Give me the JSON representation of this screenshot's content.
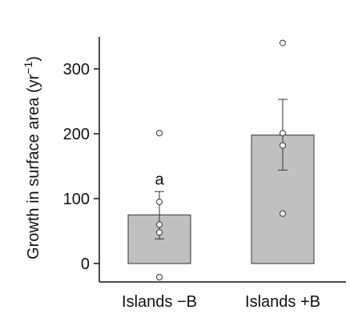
{
  "chart_data": {
    "type": "bar",
    "categories": [
      "Islands −B",
      "Islands +B"
    ],
    "values": [
      75,
      198
    ],
    "error": [
      {
        "lower": 38,
        "upper": 111
      },
      {
        "lower": 144,
        "upper": 253
      }
    ],
    "points": [
      [
        201,
        95,
        60,
        48,
        -21
      ],
      [
        340,
        201,
        182,
        77
      ]
    ],
    "annotations": [
      {
        "category": 0,
        "text": "a",
        "y": 130
      }
    ],
    "ylabel": "Growth in surface area (yr",
    "ylabel_sup": "−1",
    "ylabel_close": ")",
    "xlabel": "",
    "ylim": [
      -30,
      345
    ],
    "yticks": [
      0,
      100,
      200,
      300
    ],
    "colors": {
      "bar_fill": "#c0c0c0",
      "bar_stroke": "#333333",
      "axis": "#111111",
      "point_fill": "#ffffff",
      "point_stroke": "#333333"
    }
  }
}
